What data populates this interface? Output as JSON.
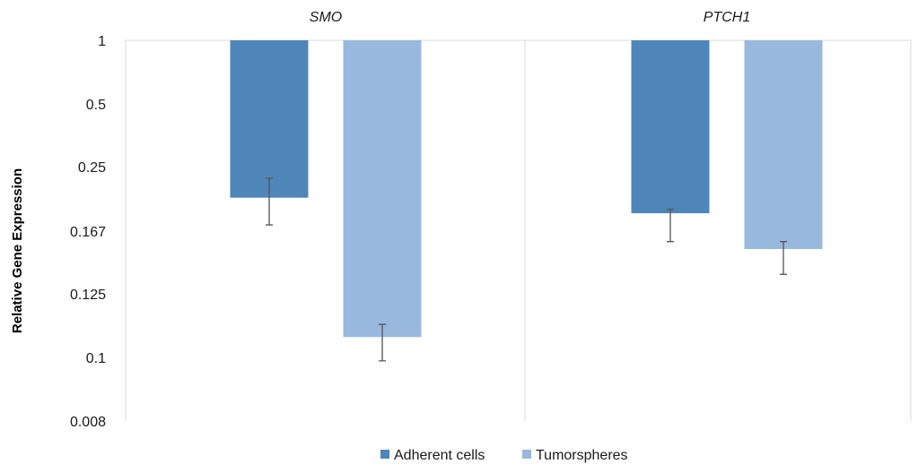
{
  "chart_data": {
    "type": "bar",
    "title": "",
    "xlabel": "",
    "ylabel": "Relative Gene Expression",
    "categories": [
      "SMO",
      "PTCH1"
    ],
    "y_tick_labels": [
      "1",
      "0.5",
      "0.25",
      "0.167",
      "0.125",
      "0.1",
      "0.008"
    ],
    "baseline": "top",
    "grid": false,
    "legend_position": "bottom",
    "series": [
      {
        "name": "Adherent cells",
        "color": "#4f86b9",
        "values": [
          0.21,
          0.19
        ],
        "error_low": [
          0.175,
          0.16
        ],
        "error_high": [
          0.235,
          0.195
        ]
      },
      {
        "name": "Tumorspheres",
        "color": "#98b9dd",
        "values": [
          0.108,
          0.155
        ],
        "error_low": [
          0.095,
          0.138
        ],
        "error_high": [
          0.113,
          0.16
        ]
      }
    ]
  }
}
